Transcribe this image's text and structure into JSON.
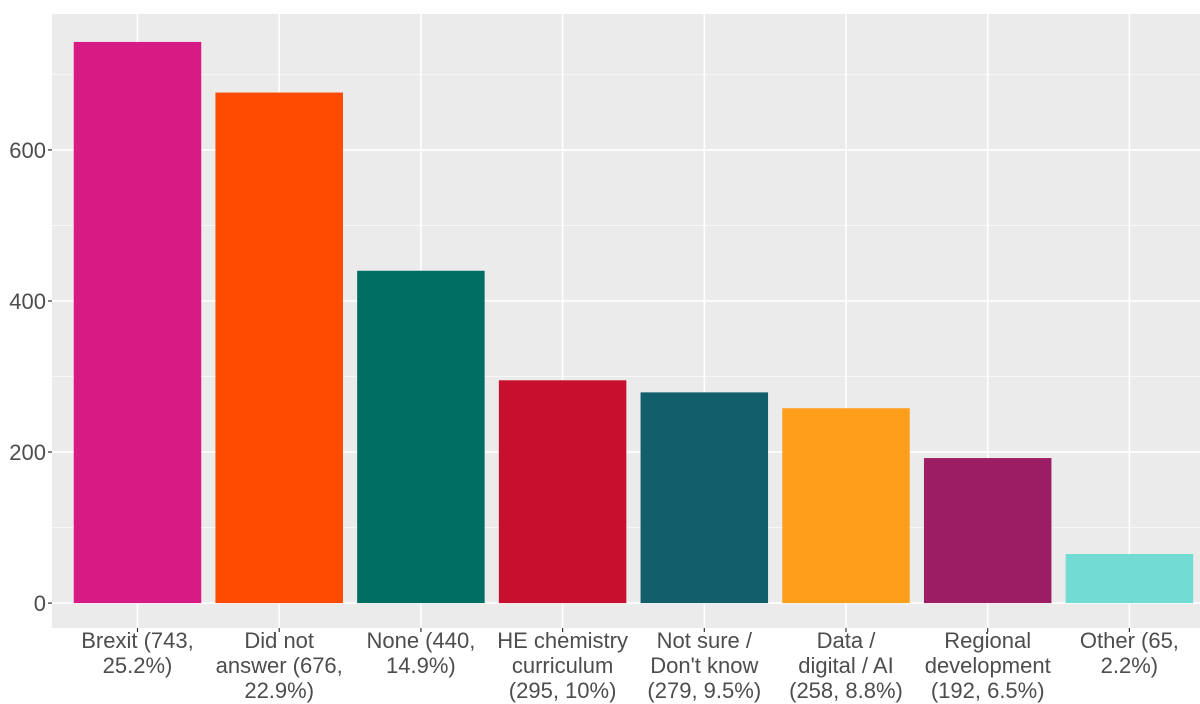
{
  "chart_data": {
    "type": "bar",
    "categories": [
      [
        "Brexit (743,",
        "25.2%)"
      ],
      [
        "Did not",
        "answer (676,",
        "22.9%)"
      ],
      [
        "None (440,",
        "14.9%)"
      ],
      [
        "HE chemistry",
        "curriculum",
        "(295, 10%)"
      ],
      [
        "Not sure /",
        "Don't know",
        "(279, 9.5%)"
      ],
      [
        "Data /",
        "digital / AI",
        "(258, 8.8%)"
      ],
      [
        "Regional",
        "development",
        "(192, 6.5%)"
      ],
      [
        "Other (65,",
        "2.2%)"
      ]
    ],
    "values": [
      743,
      676,
      440,
      295,
      279,
      258,
      192,
      65
    ],
    "colors": [
      "#d81b84",
      "#ff4b00",
      "#006e63",
      "#c8102e",
      "#135e6b",
      "#ff9e1b",
      "#9b1d63",
      "#71dbd4"
    ],
    "yticks": [
      0,
      200,
      400,
      600
    ],
    "ylim": [
      -33,
      780
    ],
    "grid": true,
    "title": "",
    "xlabel": "",
    "ylabel": ""
  }
}
